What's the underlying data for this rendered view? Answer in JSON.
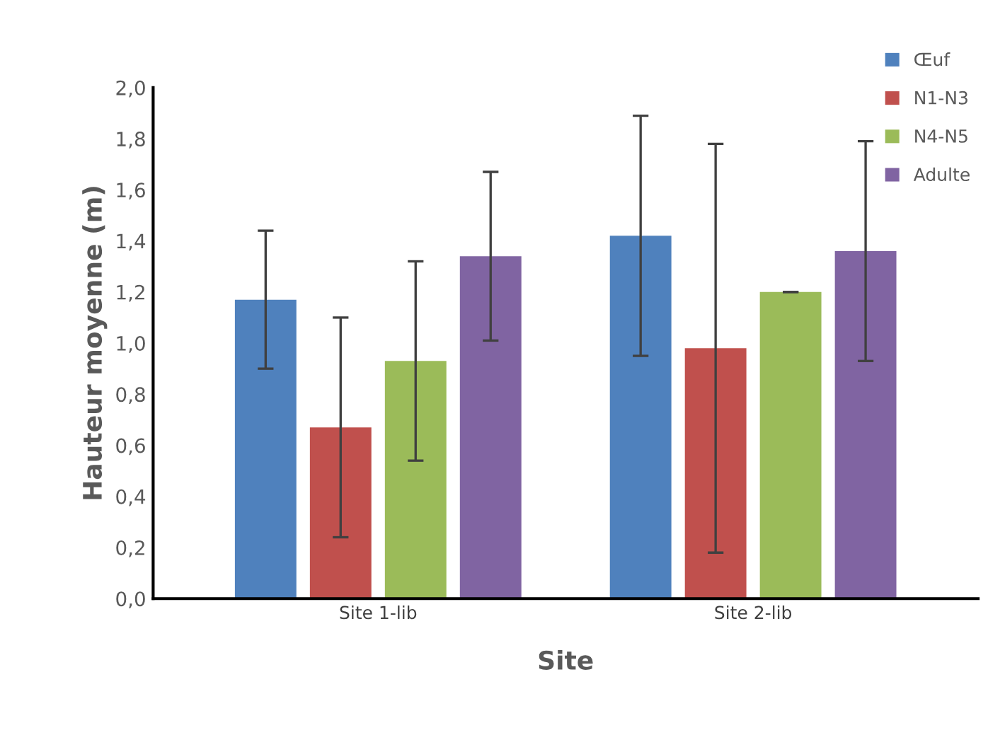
{
  "chart_data": {
    "type": "bar",
    "xlabel": "Site",
    "ylabel": "Hauteur moyenne (m)",
    "categories": [
      "Site 1-lib",
      "Site 2-lib"
    ],
    "series": [
      {
        "name": "Œuf",
        "color": "#4f81bd",
        "values": [
          1.17,
          1.42
        ],
        "errors": [
          0.27,
          0.47
        ]
      },
      {
        "name": "N1-N3",
        "color": "#c0504d",
        "values": [
          0.67,
          0.98
        ],
        "errors": [
          0.43,
          0.8
        ]
      },
      {
        "name": "N4-N5",
        "color": "#9bbb59",
        "values": [
          0.93,
          1.2
        ],
        "errors": [
          0.39,
          0.0
        ]
      },
      {
        "name": "Adulte",
        "color": "#8064a2",
        "values": [
          1.34,
          1.36
        ],
        "errors": [
          0.33,
          0.43
        ]
      }
    ],
    "ylim": [
      0,
      2
    ],
    "yticks": [
      {
        "value": 0,
        "label": "0,0"
      },
      {
        "value": 0.2,
        "label": "0,2"
      },
      {
        "value": 0.4,
        "label": "0,4"
      },
      {
        "value": 0.6,
        "label": "0,6"
      },
      {
        "value": 0.8,
        "label": "0,8"
      },
      {
        "value": 1.0,
        "label": "1,0"
      },
      {
        "value": 1.2,
        "label": "1,2"
      },
      {
        "value": 1.4,
        "label": "1,4"
      },
      {
        "value": 1.6,
        "label": "1,6"
      },
      {
        "value": 1.8,
        "label": "1,8"
      },
      {
        "value": 2.0,
        "label": "2,0"
      }
    ],
    "grid": false,
    "legend": "top right"
  }
}
